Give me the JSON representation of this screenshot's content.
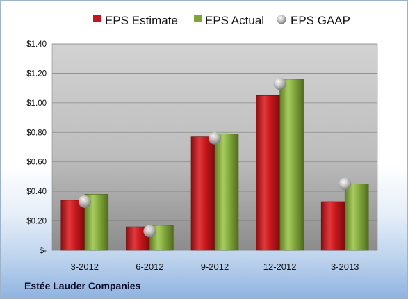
{
  "footer": {
    "company": "Estée Lauder Companies"
  },
  "chart_data": {
    "type": "bar",
    "title": "",
    "xlabel": "",
    "ylabel": "",
    "categories": [
      "3-2012",
      "6-2012",
      "9-2012",
      "12-2012",
      "3-2013"
    ],
    "series": [
      {
        "name": "EPS Estimate",
        "kind": "bar",
        "color": "#c0181c",
        "values": [
          0.34,
          0.16,
          0.77,
          1.05,
          0.33
        ]
      },
      {
        "name": "EPS Actual",
        "kind": "bar",
        "color": "#7ea43a",
        "values": [
          0.38,
          0.17,
          0.79,
          1.16,
          0.45
        ]
      },
      {
        "name": "EPS GAAP",
        "kind": "marker",
        "color": "#b8b8b8",
        "values": [
          0.33,
          0.13,
          0.76,
          1.13,
          0.45
        ]
      }
    ],
    "ylim": [
      0,
      1.4
    ],
    "yticks": [
      0,
      0.2,
      0.4,
      0.6,
      0.8,
      1.0,
      1.2,
      1.4
    ],
    "ytick_labels": [
      "$-",
      "$0.20",
      "$0.40",
      "$0.60",
      "$0.80",
      "$1.00",
      "$1.20",
      "$1.40"
    ],
    "grid": true,
    "legend": "top-center"
  }
}
